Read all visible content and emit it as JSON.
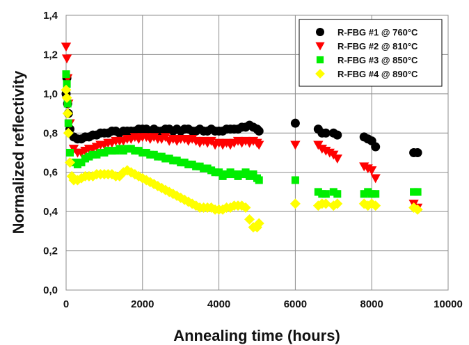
{
  "chart_data": {
    "type": "scatter",
    "xlabel": "Annealing time (hours)",
    "ylabel": "Normalized reflectivity",
    "xlim": [
      0,
      10000
    ],
    "ylim": [
      0.0,
      1.4
    ],
    "xticks": [
      "0",
      "2000",
      "4000",
      "6000",
      "8000",
      "10000"
    ],
    "yticks": [
      "0,0",
      "0,2",
      "0,4",
      "0,6",
      "0,8",
      "1,0",
      "1,2",
      "1,4"
    ],
    "grid": true,
    "legend_position": "top-right",
    "series": [
      {
        "name": "R-FBG #1 @ 760°C",
        "color": "#000000",
        "marker": "circle",
        "points": [
          [
            0,
            1.0
          ],
          [
            20,
            1.08
          ],
          [
            40,
            0.95
          ],
          [
            60,
            0.9
          ],
          [
            100,
            0.82
          ],
          [
            200,
            0.78
          ],
          [
            300,
            0.77
          ],
          [
            400,
            0.77
          ],
          [
            500,
            0.78
          ],
          [
            600,
            0.78
          ],
          [
            700,
            0.79
          ],
          [
            800,
            0.79
          ],
          [
            900,
            0.8
          ],
          [
            1000,
            0.8
          ],
          [
            1100,
            0.8
          ],
          [
            1200,
            0.81
          ],
          [
            1300,
            0.81
          ],
          [
            1400,
            0.8
          ],
          [
            1500,
            0.81
          ],
          [
            1600,
            0.81
          ],
          [
            1700,
            0.81
          ],
          [
            1800,
            0.81
          ],
          [
            1900,
            0.82
          ],
          [
            2000,
            0.82
          ],
          [
            2100,
            0.82
          ],
          [
            2200,
            0.81
          ],
          [
            2300,
            0.82
          ],
          [
            2400,
            0.81
          ],
          [
            2500,
            0.81
          ],
          [
            2600,
            0.82
          ],
          [
            2700,
            0.82
          ],
          [
            2800,
            0.81
          ],
          [
            2900,
            0.82
          ],
          [
            3000,
            0.81
          ],
          [
            3100,
            0.82
          ],
          [
            3200,
            0.82
          ],
          [
            3300,
            0.81
          ],
          [
            3400,
            0.81
          ],
          [
            3500,
            0.82
          ],
          [
            3600,
            0.81
          ],
          [
            3700,
            0.81
          ],
          [
            3800,
            0.82
          ],
          [
            3900,
            0.81
          ],
          [
            4000,
            0.81
          ],
          [
            4100,
            0.81
          ],
          [
            4200,
            0.82
          ],
          [
            4300,
            0.82
          ],
          [
            4400,
            0.82
          ],
          [
            4500,
            0.82
          ],
          [
            4600,
            0.83
          ],
          [
            4700,
            0.83
          ],
          [
            4800,
            0.84
          ],
          [
            4900,
            0.83
          ],
          [
            5000,
            0.82
          ],
          [
            5050,
            0.81
          ],
          [
            6000,
            0.85
          ],
          [
            6600,
            0.82
          ],
          [
            6700,
            0.8
          ],
          [
            6800,
            0.8
          ],
          [
            7000,
            0.8
          ],
          [
            7100,
            0.79
          ],
          [
            7800,
            0.78
          ],
          [
            7900,
            0.77
          ],
          [
            8000,
            0.76
          ],
          [
            8100,
            0.73
          ],
          [
            9100,
            0.7
          ],
          [
            9200,
            0.7
          ]
        ]
      },
      {
        "name": "R-FBG #2 @ 810°C",
        "color": "#ff0000",
        "marker": "triangle-down",
        "points": [
          [
            0,
            1.24
          ],
          [
            20,
            1.18
          ],
          [
            40,
            1.08
          ],
          [
            60,
            0.95
          ],
          [
            100,
            0.85
          ],
          [
            200,
            0.72
          ],
          [
            300,
            0.7
          ],
          [
            400,
            0.7
          ],
          [
            500,
            0.71
          ],
          [
            600,
            0.72
          ],
          [
            700,
            0.72
          ],
          [
            800,
            0.73
          ],
          [
            900,
            0.74
          ],
          [
            1000,
            0.74
          ],
          [
            1100,
            0.75
          ],
          [
            1200,
            0.75
          ],
          [
            1300,
            0.76
          ],
          [
            1400,
            0.76
          ],
          [
            1500,
            0.76
          ],
          [
            1600,
            0.77
          ],
          [
            1700,
            0.77
          ],
          [
            1800,
            0.78
          ],
          [
            1900,
            0.77
          ],
          [
            2000,
            0.78
          ],
          [
            2100,
            0.78
          ],
          [
            2200,
            0.77
          ],
          [
            2300,
            0.78
          ],
          [
            2400,
            0.77
          ],
          [
            2500,
            0.77
          ],
          [
            2600,
            0.78
          ],
          [
            2700,
            0.76
          ],
          [
            2800,
            0.77
          ],
          [
            2900,
            0.76
          ],
          [
            3000,
            0.77
          ],
          [
            3100,
            0.77
          ],
          [
            3200,
            0.76
          ],
          [
            3300,
            0.77
          ],
          [
            3400,
            0.76
          ],
          [
            3500,
            0.75
          ],
          [
            3600,
            0.76
          ],
          [
            3700,
            0.75
          ],
          [
            3800,
            0.76
          ],
          [
            3900,
            0.74
          ],
          [
            4000,
            0.75
          ],
          [
            4100,
            0.74
          ],
          [
            4200,
            0.75
          ],
          [
            4300,
            0.74
          ],
          [
            4400,
            0.75
          ],
          [
            4500,
            0.76
          ],
          [
            4600,
            0.75
          ],
          [
            4700,
            0.76
          ],
          [
            4800,
            0.75
          ],
          [
            4900,
            0.76
          ],
          [
            5000,
            0.75
          ],
          [
            5050,
            0.74
          ],
          [
            6000,
            0.74
          ],
          [
            6600,
            0.74
          ],
          [
            6700,
            0.72
          ],
          [
            6800,
            0.71
          ],
          [
            6900,
            0.7
          ],
          [
            7000,
            0.69
          ],
          [
            7100,
            0.67
          ],
          [
            7800,
            0.63
          ],
          [
            7900,
            0.62
          ],
          [
            8000,
            0.61
          ],
          [
            8100,
            0.57
          ],
          [
            9100,
            0.44
          ],
          [
            9200,
            0.42
          ]
        ]
      },
      {
        "name": "R-FBG #3 @ 850°C",
        "color": "#00ee00",
        "marker": "square",
        "points": [
          [
            0,
            1.1
          ],
          [
            20,
            1.05
          ],
          [
            40,
            0.95
          ],
          [
            60,
            0.85
          ],
          [
            100,
            0.7
          ],
          [
            200,
            0.65
          ],
          [
            300,
            0.64
          ],
          [
            400,
            0.65
          ],
          [
            500,
            0.67
          ],
          [
            600,
            0.68
          ],
          [
            700,
            0.69
          ],
          [
            800,
            0.69
          ],
          [
            900,
            0.7
          ],
          [
            1000,
            0.7
          ],
          [
            1100,
            0.71
          ],
          [
            1200,
            0.71
          ],
          [
            1300,
            0.71
          ],
          [
            1400,
            0.72
          ],
          [
            1500,
            0.71
          ],
          [
            1600,
            0.72
          ],
          [
            1700,
            0.72
          ],
          [
            1800,
            0.71
          ],
          [
            1900,
            0.71
          ],
          [
            2000,
            0.7
          ],
          [
            2100,
            0.7
          ],
          [
            2200,
            0.69
          ],
          [
            2300,
            0.69
          ],
          [
            2400,
            0.68
          ],
          [
            2500,
            0.68
          ],
          [
            2600,
            0.67
          ],
          [
            2700,
            0.67
          ],
          [
            2800,
            0.66
          ],
          [
            2900,
            0.66
          ],
          [
            3000,
            0.65
          ],
          [
            3100,
            0.65
          ],
          [
            3200,
            0.64
          ],
          [
            3300,
            0.64
          ],
          [
            3400,
            0.63
          ],
          [
            3500,
            0.63
          ],
          [
            3600,
            0.62
          ],
          [
            3700,
            0.62
          ],
          [
            3800,
            0.61
          ],
          [
            3900,
            0.6
          ],
          [
            4000,
            0.6
          ],
          [
            4100,
            0.58
          ],
          [
            4200,
            0.59
          ],
          [
            4300,
            0.6
          ],
          [
            4400,
            0.59
          ],
          [
            4500,
            0.58
          ],
          [
            4600,
            0.59
          ],
          [
            4700,
            0.6
          ],
          [
            4800,
            0.58
          ],
          [
            4900,
            0.59
          ],
          [
            5000,
            0.57
          ],
          [
            5050,
            0.56
          ],
          [
            6000,
            0.56
          ],
          [
            6600,
            0.5
          ],
          [
            6700,
            0.49
          ],
          [
            6800,
            0.49
          ],
          [
            7000,
            0.5
          ],
          [
            7100,
            0.49
          ],
          [
            7800,
            0.49
          ],
          [
            7900,
            0.5
          ],
          [
            8000,
            0.49
          ],
          [
            8100,
            0.49
          ],
          [
            9100,
            0.5
          ],
          [
            9200,
            0.5
          ]
        ]
      },
      {
        "name": "R-FBG #4 @ 890°C",
        "color": "#ffff00",
        "marker": "diamond",
        "points": [
          [
            0,
            1.02
          ],
          [
            20,
            0.98
          ],
          [
            40,
            0.9
          ],
          [
            60,
            0.8
          ],
          [
            100,
            0.65
          ],
          [
            150,
            0.58
          ],
          [
            200,
            0.56
          ],
          [
            300,
            0.56
          ],
          [
            400,
            0.57
          ],
          [
            500,
            0.58
          ],
          [
            600,
            0.58
          ],
          [
            700,
            0.58
          ],
          [
            800,
            0.59
          ],
          [
            900,
            0.59
          ],
          [
            1000,
            0.59
          ],
          [
            1100,
            0.59
          ],
          [
            1200,
            0.59
          ],
          [
            1300,
            0.58
          ],
          [
            1400,
            0.58
          ],
          [
            1500,
            0.6
          ],
          [
            1600,
            0.61
          ],
          [
            1700,
            0.6
          ],
          [
            1800,
            0.59
          ],
          [
            1900,
            0.58
          ],
          [
            2000,
            0.57
          ],
          [
            2100,
            0.56
          ],
          [
            2200,
            0.55
          ],
          [
            2300,
            0.54
          ],
          [
            2400,
            0.53
          ],
          [
            2500,
            0.52
          ],
          [
            2600,
            0.51
          ],
          [
            2700,
            0.5
          ],
          [
            2800,
            0.49
          ],
          [
            2900,
            0.48
          ],
          [
            3000,
            0.47
          ],
          [
            3100,
            0.46
          ],
          [
            3200,
            0.45
          ],
          [
            3300,
            0.44
          ],
          [
            3400,
            0.43
          ],
          [
            3500,
            0.42
          ],
          [
            3600,
            0.42
          ],
          [
            3700,
            0.42
          ],
          [
            3800,
            0.42
          ],
          [
            3900,
            0.41
          ],
          [
            4000,
            0.41
          ],
          [
            4100,
            0.41
          ],
          [
            4200,
            0.42
          ],
          [
            4300,
            0.42
          ],
          [
            4400,
            0.43
          ],
          [
            4500,
            0.43
          ],
          [
            4600,
            0.43
          ],
          [
            4700,
            0.42
          ],
          [
            4800,
            0.36
          ],
          [
            4900,
            0.32
          ],
          [
            5000,
            0.32
          ],
          [
            5050,
            0.34
          ],
          [
            6000,
            0.44
          ],
          [
            6600,
            0.43
          ],
          [
            6700,
            0.44
          ],
          [
            6800,
            0.44
          ],
          [
            7000,
            0.43
          ],
          [
            7100,
            0.44
          ],
          [
            7800,
            0.44
          ],
          [
            7900,
            0.43
          ],
          [
            8000,
            0.44
          ],
          [
            8100,
            0.43
          ],
          [
            9100,
            0.42
          ],
          [
            9200,
            0.41
          ]
        ]
      }
    ]
  }
}
